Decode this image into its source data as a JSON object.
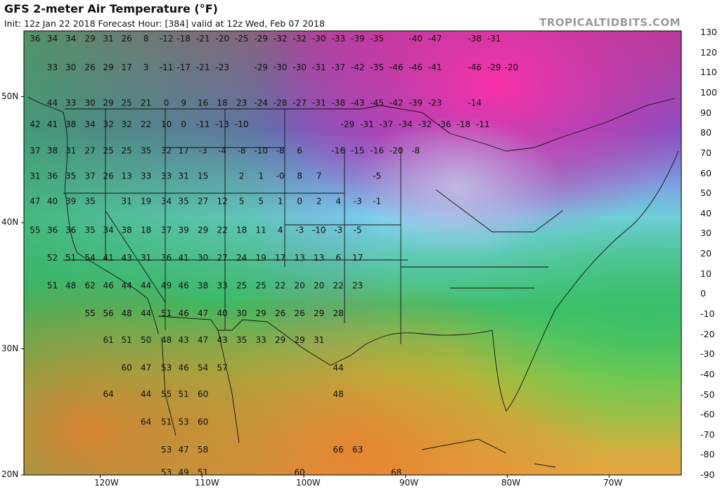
{
  "header": {
    "title": "GFS 2-meter Air Temperature (°F)",
    "subtitle": "Init: 12z Jan 22 2018   Forecast Hour: [384]   valid at 12z Wed, Feb 07 2018",
    "brand": "TROPICALTIDBITS.COM"
  },
  "axes": {
    "latitudes": [
      "50N",
      "40N",
      "30N",
      "20N"
    ],
    "longitudes": [
      "120W",
      "110W",
      "100W",
      "90W",
      "80W",
      "70W"
    ]
  },
  "colorbar": {
    "unit": "°F",
    "labels": [
      "130",
      "120",
      "110",
      "100",
      "90",
      "80",
      "70",
      "60",
      "50",
      "40",
      "30",
      "20",
      "10",
      "0",
      "-10",
      "-20",
      "-30",
      "-40",
      "-50",
      "-60",
      "-70",
      "-80",
      "-90"
    ],
    "colors": [
      "#7d2b6d",
      "#a54288",
      "#c96aaa",
      "#e8a5d3",
      "#8b1e1e",
      "#b43a2a",
      "#d66a2a",
      "#e89a3a",
      "#f0c845",
      "#9bcf3f",
      "#3fba6a",
      "#2fc5a5",
      "#2ec8e8",
      "#3a8de0",
      "#5b60d6",
      "#8a56c9",
      "#a84ab3",
      "#c83a8f",
      "#e03070",
      "#f0209a",
      "#f060c0",
      "#f7a8e0"
    ]
  },
  "temperatures": [
    {
      "t": "36",
      "lon": -126.4,
      "lat": 54.6
    },
    {
      "t": "34",
      "lon": -124.7,
      "lat": 54.6
    },
    {
      "t": "34",
      "lon": -122.9,
      "lat": 54.6
    },
    {
      "t": "29",
      "lon": -121.0,
      "lat": 54.6
    },
    {
      "t": "31",
      "lon": -119.2,
      "lat": 54.6
    },
    {
      "t": "26",
      "lon": -117.4,
      "lat": 54.6
    },
    {
      "t": "8",
      "lon": -115.5,
      "lat": 54.6
    },
    {
      "t": "-12",
      "lon": -113.5,
      "lat": 54.6
    },
    {
      "t": "-18",
      "lon": -111.8,
      "lat": 54.6
    },
    {
      "t": "-21",
      "lon": -109.9,
      "lat": 54.6
    },
    {
      "t": "-20",
      "lon": -108.0,
      "lat": 54.6
    },
    {
      "t": "-25",
      "lon": -106.1,
      "lat": 54.6
    },
    {
      "t": "-29",
      "lon": -104.2,
      "lat": 54.6
    },
    {
      "t": "-32",
      "lon": -102.3,
      "lat": 54.6
    },
    {
      "t": "-32",
      "lon": -100.4,
      "lat": 54.6
    },
    {
      "t": "-30",
      "lon": -98.5,
      "lat": 54.6
    },
    {
      "t": "-33",
      "lon": -96.6,
      "lat": 54.6
    },
    {
      "t": "-39",
      "lon": -94.7,
      "lat": 54.6
    },
    {
      "t": "-35",
      "lon": -92.8,
      "lat": 54.6
    },
    {
      "t": "-40",
      "lon": -89.0,
      "lat": 54.6
    },
    {
      "t": "-47",
      "lon": -87.1,
      "lat": 54.6
    },
    {
      "t": "-38",
      "lon": -83.2,
      "lat": 54.6
    },
    {
      "t": "-31",
      "lon": -81.3,
      "lat": 54.6
    },
    {
      "t": "33",
      "lon": -124.7,
      "lat": 52.3
    },
    {
      "t": "30",
      "lon": -122.9,
      "lat": 52.3
    },
    {
      "t": "26",
      "lon": -121.0,
      "lat": 52.3
    },
    {
      "t": "29",
      "lon": -119.2,
      "lat": 52.3
    },
    {
      "t": "17",
      "lon": -117.4,
      "lat": 52.3
    },
    {
      "t": "3",
      "lon": -115.5,
      "lat": 52.3
    },
    {
      "t": "-11",
      "lon": -113.5,
      "lat": 52.3
    },
    {
      "t": "-17",
      "lon": -111.8,
      "lat": 52.3
    },
    {
      "t": "-21",
      "lon": -109.9,
      "lat": 52.3
    },
    {
      "t": "-23",
      "lon": -108.0,
      "lat": 52.3
    },
    {
      "t": "-29",
      "lon": -104.2,
      "lat": 52.3
    },
    {
      "t": "-30",
      "lon": -102.3,
      "lat": 52.3
    },
    {
      "t": "-30",
      "lon": -100.4,
      "lat": 52.3
    },
    {
      "t": "-31",
      "lon": -98.5,
      "lat": 52.3
    },
    {
      "t": "-37",
      "lon": -96.6,
      "lat": 52.3
    },
    {
      "t": "-42",
      "lon": -94.7,
      "lat": 52.3
    },
    {
      "t": "-35",
      "lon": -92.8,
      "lat": 52.3
    },
    {
      "t": "-46",
      "lon": -90.9,
      "lat": 52.3
    },
    {
      "t": "-46",
      "lon": -89.0,
      "lat": 52.3
    },
    {
      "t": "-41",
      "lon": -87.1,
      "lat": 52.3
    },
    {
      "t": "-46",
      "lon": -83.2,
      "lat": 52.3
    },
    {
      "t": "-29",
      "lon": -81.3,
      "lat": 52.3
    },
    {
      "t": "-20",
      "lon": -79.6,
      "lat": 52.3
    },
    {
      "t": "44",
      "lon": -124.7,
      "lat": 49.5
    },
    {
      "t": "33",
      "lon": -122.9,
      "lat": 49.5
    },
    {
      "t": "30",
      "lon": -121.0,
      "lat": 49.5
    },
    {
      "t": "29",
      "lon": -119.2,
      "lat": 49.5
    },
    {
      "t": "25",
      "lon": -117.4,
      "lat": 49.5
    },
    {
      "t": "21",
      "lon": -115.5,
      "lat": 49.5
    },
    {
      "t": "0",
      "lon": -113.5,
      "lat": 49.5
    },
    {
      "t": "9",
      "lon": -111.8,
      "lat": 49.5
    },
    {
      "t": "16",
      "lon": -109.9,
      "lat": 49.5
    },
    {
      "t": "18",
      "lon": -108.0,
      "lat": 49.5
    },
    {
      "t": "23",
      "lon": -106.1,
      "lat": 49.5
    },
    {
      "t": "-24",
      "lon": -104.2,
      "lat": 49.5
    },
    {
      "t": "-28",
      "lon": -102.3,
      "lat": 49.5
    },
    {
      "t": "-27",
      "lon": -100.4,
      "lat": 49.5
    },
    {
      "t": "-31",
      "lon": -98.5,
      "lat": 49.5
    },
    {
      "t": "-38",
      "lon": -96.6,
      "lat": 49.5
    },
    {
      "t": "-43",
      "lon": -94.7,
      "lat": 49.5
    },
    {
      "t": "-45",
      "lon": -92.8,
      "lat": 49.5
    },
    {
      "t": "-42",
      "lon": -90.9,
      "lat": 49.5
    },
    {
      "t": "-39",
      "lon": -89.0,
      "lat": 49.5
    },
    {
      "t": "-23",
      "lon": -87.1,
      "lat": 49.5
    },
    {
      "t": "-14",
      "lon": -83.2,
      "lat": 49.5
    },
    {
      "t": "42",
      "lon": -126.4,
      "lat": 47.8
    },
    {
      "t": "41",
      "lon": -124.7,
      "lat": 47.8
    },
    {
      "t": "38",
      "lon": -122.9,
      "lat": 47.8
    },
    {
      "t": "34",
      "lon": -121.0,
      "lat": 47.8
    },
    {
      "t": "32",
      "lon": -119.2,
      "lat": 47.8
    },
    {
      "t": "32",
      "lon": -117.4,
      "lat": 47.8
    },
    {
      "t": "22",
      "lon": -115.5,
      "lat": 47.8
    },
    {
      "t": "10",
      "lon": -113.5,
      "lat": 47.8
    },
    {
      "t": "0",
      "lon": -111.8,
      "lat": 47.8
    },
    {
      "t": "-11",
      "lon": -109.9,
      "lat": 47.8
    },
    {
      "t": "-13",
      "lon": -108.0,
      "lat": 47.8
    },
    {
      "t": "-10",
      "lon": -106.1,
      "lat": 47.8
    },
    {
      "t": "-29",
      "lon": -95.7,
      "lat": 47.8
    },
    {
      "t": "-31",
      "lon": -93.8,
      "lat": 47.8
    },
    {
      "t": "-37",
      "lon": -91.9,
      "lat": 47.8
    },
    {
      "t": "-34",
      "lon": -90.0,
      "lat": 47.8
    },
    {
      "t": "-32",
      "lon": -88.1,
      "lat": 47.8
    },
    {
      "t": "-36",
      "lon": -86.2,
      "lat": 47.8
    },
    {
      "t": "-18",
      "lon": -84.3,
      "lat": 47.8
    },
    {
      "t": "-11",
      "lon": -82.4,
      "lat": 47.8
    },
    {
      "t": "37",
      "lon": -126.4,
      "lat": 45.7
    },
    {
      "t": "38",
      "lon": -124.7,
      "lat": 45.7
    },
    {
      "t": "31",
      "lon": -122.9,
      "lat": 45.7
    },
    {
      "t": "27",
      "lon": -121.0,
      "lat": 45.7
    },
    {
      "t": "25",
      "lon": -119.2,
      "lat": 45.7
    },
    {
      "t": "25",
      "lon": -117.4,
      "lat": 45.7
    },
    {
      "t": "35",
      "lon": -115.5,
      "lat": 45.7
    },
    {
      "t": "32",
      "lon": -113.5,
      "lat": 45.7
    },
    {
      "t": "17",
      "lon": -111.8,
      "lat": 45.7
    },
    {
      "t": "-3",
      "lon": -109.9,
      "lat": 45.7
    },
    {
      "t": "-4",
      "lon": -108.0,
      "lat": 45.7
    },
    {
      "t": "-8",
      "lon": -106.1,
      "lat": 45.7
    },
    {
      "t": "-10",
      "lon": -104.2,
      "lat": 45.7
    },
    {
      "t": "-8",
      "lon": -102.3,
      "lat": 45.7
    },
    {
      "t": "6",
      "lon": -100.4,
      "lat": 45.7
    },
    {
      "t": "-16",
      "lon": -96.6,
      "lat": 45.7
    },
    {
      "t": "-15",
      "lon": -94.7,
      "lat": 45.7
    },
    {
      "t": "-16",
      "lon": -92.8,
      "lat": 45.7
    },
    {
      "t": "-20",
      "lon": -90.9,
      "lat": 45.7
    },
    {
      "t": "-8",
      "lon": -89.0,
      "lat": 45.7
    },
    {
      "t": "31",
      "lon": -126.4,
      "lat": 43.7
    },
    {
      "t": "36",
      "lon": -124.7,
      "lat": 43.7
    },
    {
      "t": "35",
      "lon": -122.9,
      "lat": 43.7
    },
    {
      "t": "37",
      "lon": -121.0,
      "lat": 43.7
    },
    {
      "t": "26",
      "lon": -119.2,
      "lat": 43.7
    },
    {
      "t": "13",
      "lon": -117.4,
      "lat": 43.7
    },
    {
      "t": "33",
      "lon": -115.5,
      "lat": 43.7
    },
    {
      "t": "33",
      "lon": -113.5,
      "lat": 43.7
    },
    {
      "t": "31",
      "lon": -111.8,
      "lat": 43.7
    },
    {
      "t": "15",
      "lon": -109.9,
      "lat": 43.7
    },
    {
      "t": "2",
      "lon": -106.1,
      "lat": 43.7
    },
    {
      "t": "1",
      "lon": -104.2,
      "lat": 43.7
    },
    {
      "t": "-0",
      "lon": -102.3,
      "lat": 43.7
    },
    {
      "t": "8",
      "lon": -100.4,
      "lat": 43.7
    },
    {
      "t": "7",
      "lon": -98.5,
      "lat": 43.7
    },
    {
      "t": "-5",
      "lon": -92.8,
      "lat": 43.7
    },
    {
      "t": "47",
      "lon": -126.4,
      "lat": 41.7
    },
    {
      "t": "40",
      "lon": -124.7,
      "lat": 41.7
    },
    {
      "t": "39",
      "lon": -122.9,
      "lat": 41.7
    },
    {
      "t": "35",
      "lon": -121.0,
      "lat": 41.7
    },
    {
      "t": "31",
      "lon": -117.4,
      "lat": 41.7
    },
    {
      "t": "19",
      "lon": -115.5,
      "lat": 41.7
    },
    {
      "t": "34",
      "lon": -113.5,
      "lat": 41.7
    },
    {
      "t": "35",
      "lon": -111.8,
      "lat": 41.7
    },
    {
      "t": "27",
      "lon": -109.9,
      "lat": 41.7
    },
    {
      "t": "12",
      "lon": -108.0,
      "lat": 41.7
    },
    {
      "t": "5",
      "lon": -106.1,
      "lat": 41.7
    },
    {
      "t": "5",
      "lon": -104.2,
      "lat": 41.7
    },
    {
      "t": "1",
      "lon": -102.3,
      "lat": 41.7
    },
    {
      "t": "0",
      "lon": -100.4,
      "lat": 41.7
    },
    {
      "t": "2",
      "lon": -98.5,
      "lat": 41.7
    },
    {
      "t": "4",
      "lon": -96.6,
      "lat": 41.7
    },
    {
      "t": "-3",
      "lon": -94.7,
      "lat": 41.7
    },
    {
      "t": "-1",
      "lon": -92.8,
      "lat": 41.7
    },
    {
      "t": "55",
      "lon": -126.4,
      "lat": 39.4
    },
    {
      "t": "36",
      "lon": -124.7,
      "lat": 39.4
    },
    {
      "t": "36",
      "lon": -122.9,
      "lat": 39.4
    },
    {
      "t": "35",
      "lon": -121.0,
      "lat": 39.4
    },
    {
      "t": "34",
      "lon": -119.2,
      "lat": 39.4
    },
    {
      "t": "38",
      "lon": -117.4,
      "lat": 39.4
    },
    {
      "t": "18",
      "lon": -115.5,
      "lat": 39.4
    },
    {
      "t": "37",
      "lon": -113.5,
      "lat": 39.4
    },
    {
      "t": "39",
      "lon": -111.8,
      "lat": 39.4
    },
    {
      "t": "29",
      "lon": -109.9,
      "lat": 39.4
    },
    {
      "t": "22",
      "lon": -108.0,
      "lat": 39.4
    },
    {
      "t": "18",
      "lon": -106.1,
      "lat": 39.4
    },
    {
      "t": "11",
      "lon": -104.2,
      "lat": 39.4
    },
    {
      "t": "4",
      "lon": -102.3,
      "lat": 39.4
    },
    {
      "t": "-3",
      "lon": -100.4,
      "lat": 39.4
    },
    {
      "t": "-10",
      "lon": -98.5,
      "lat": 39.4
    },
    {
      "t": "-3",
      "lon": -96.6,
      "lat": 39.4
    },
    {
      "t": "-5",
      "lon": -94.7,
      "lat": 39.4
    },
    {
      "t": "52",
      "lon": -124.7,
      "lat": 37.2
    },
    {
      "t": "51",
      "lon": -122.9,
      "lat": 37.2
    },
    {
      "t": "54",
      "lon": -121.0,
      "lat": 37.2
    },
    {
      "t": "41",
      "lon": -119.2,
      "lat": 37.2
    },
    {
      "t": "43",
      "lon": -117.4,
      "lat": 37.2
    },
    {
      "t": "31",
      "lon": -115.5,
      "lat": 37.2
    },
    {
      "t": "36",
      "lon": -113.5,
      "lat": 37.2
    },
    {
      "t": "41",
      "lon": -111.8,
      "lat": 37.2
    },
    {
      "t": "30",
      "lon": -109.9,
      "lat": 37.2
    },
    {
      "t": "27",
      "lon": -108.0,
      "lat": 37.2
    },
    {
      "t": "24",
      "lon": -106.1,
      "lat": 37.2
    },
    {
      "t": "19",
      "lon": -104.2,
      "lat": 37.2
    },
    {
      "t": "17",
      "lon": -102.3,
      "lat": 37.2
    },
    {
      "t": "13",
      "lon": -100.4,
      "lat": 37.2
    },
    {
      "t": "13",
      "lon": -98.5,
      "lat": 37.2
    },
    {
      "t": "6",
      "lon": -96.6,
      "lat": 37.2
    },
    {
      "t": "17",
      "lon": -94.7,
      "lat": 37.2
    },
    {
      "t": "51",
      "lon": -124.7,
      "lat": 35.0
    },
    {
      "t": "48",
      "lon": -122.9,
      "lat": 35.0
    },
    {
      "t": "62",
      "lon": -121.0,
      "lat": 35.0
    },
    {
      "t": "46",
      "lon": -119.2,
      "lat": 35.0
    },
    {
      "t": "44",
      "lon": -117.4,
      "lat": 35.0
    },
    {
      "t": "44",
      "lon": -115.5,
      "lat": 35.0
    },
    {
      "t": "49",
      "lon": -113.5,
      "lat": 35.0
    },
    {
      "t": "46",
      "lon": -111.8,
      "lat": 35.0
    },
    {
      "t": "38",
      "lon": -109.9,
      "lat": 35.0
    },
    {
      "t": "33",
      "lon": -108.0,
      "lat": 35.0
    },
    {
      "t": "25",
      "lon": -106.1,
      "lat": 35.0
    },
    {
      "t": "25",
      "lon": -104.2,
      "lat": 35.0
    },
    {
      "t": "22",
      "lon": -102.3,
      "lat": 35.0
    },
    {
      "t": "20",
      "lon": -100.4,
      "lat": 35.0
    },
    {
      "t": "20",
      "lon": -98.5,
      "lat": 35.0
    },
    {
      "t": "22",
      "lon": -96.6,
      "lat": 35.0
    },
    {
      "t": "23",
      "lon": -94.7,
      "lat": 35.0
    },
    {
      "t": "55",
      "lon": -121.0,
      "lat": 32.8
    },
    {
      "t": "56",
      "lon": -119.2,
      "lat": 32.8
    },
    {
      "t": "48",
      "lon": -117.4,
      "lat": 32.8
    },
    {
      "t": "44",
      "lon": -115.5,
      "lat": 32.8
    },
    {
      "t": "51",
      "lon": -113.5,
      "lat": 32.8
    },
    {
      "t": "46",
      "lon": -111.8,
      "lat": 32.8
    },
    {
      "t": "47",
      "lon": -109.9,
      "lat": 32.8
    },
    {
      "t": "40",
      "lon": -108.0,
      "lat": 32.8
    },
    {
      "t": "30",
      "lon": -106.1,
      "lat": 32.8
    },
    {
      "t": "29",
      "lon": -104.2,
      "lat": 32.8
    },
    {
      "t": "26",
      "lon": -102.3,
      "lat": 32.8
    },
    {
      "t": "26",
      "lon": -100.4,
      "lat": 32.8
    },
    {
      "t": "29",
      "lon": -98.5,
      "lat": 32.8
    },
    {
      "t": "28",
      "lon": -96.6,
      "lat": 32.8
    },
    {
      "t": "61",
      "lon": -119.2,
      "lat": 30.7
    },
    {
      "t": "51",
      "lon": -117.4,
      "lat": 30.7
    },
    {
      "t": "50",
      "lon": -115.5,
      "lat": 30.7
    },
    {
      "t": "48",
      "lon": -113.5,
      "lat": 30.7
    },
    {
      "t": "43",
      "lon": -111.8,
      "lat": 30.7
    },
    {
      "t": "47",
      "lon": -109.9,
      "lat": 30.7
    },
    {
      "t": "43",
      "lon": -108.0,
      "lat": 30.7
    },
    {
      "t": "35",
      "lon": -106.1,
      "lat": 30.7
    },
    {
      "t": "33",
      "lon": -104.2,
      "lat": 30.7
    },
    {
      "t": "29",
      "lon": -102.3,
      "lat": 30.7
    },
    {
      "t": "29",
      "lon": -100.4,
      "lat": 30.7
    },
    {
      "t": "31",
      "lon": -98.5,
      "lat": 30.7
    },
    {
      "t": "60",
      "lon": -117.4,
      "lat": 28.5
    },
    {
      "t": "47",
      "lon": -115.5,
      "lat": 28.5
    },
    {
      "t": "53",
      "lon": -113.5,
      "lat": 28.5
    },
    {
      "t": "46",
      "lon": -111.8,
      "lat": 28.5
    },
    {
      "t": "54",
      "lon": -109.9,
      "lat": 28.5
    },
    {
      "t": "57",
      "lon": -108.0,
      "lat": 28.5
    },
    {
      "t": "44",
      "lon": -96.6,
      "lat": 28.5
    },
    {
      "t": "64",
      "lon": -119.2,
      "lat": 26.4
    },
    {
      "t": "44",
      "lon": -115.5,
      "lat": 26.4
    },
    {
      "t": "55",
      "lon": -113.5,
      "lat": 26.4
    },
    {
      "t": "51",
      "lon": -111.8,
      "lat": 26.4
    },
    {
      "t": "60",
      "lon": -109.9,
      "lat": 26.4
    },
    {
      "t": "48",
      "lon": -96.6,
      "lat": 26.4
    },
    {
      "t": "64",
      "lon": -115.5,
      "lat": 24.2
    },
    {
      "t": "51",
      "lon": -113.5,
      "lat": 24.2
    },
    {
      "t": "53",
      "lon": -111.8,
      "lat": 24.2
    },
    {
      "t": "60",
      "lon": -109.9,
      "lat": 24.2
    },
    {
      "t": "53",
      "lon": -113.5,
      "lat": 22.0
    },
    {
      "t": "47",
      "lon": -111.8,
      "lat": 22.0
    },
    {
      "t": "58",
      "lon": -109.9,
      "lat": 22.0
    },
    {
      "t": "66",
      "lon": -96.6,
      "lat": 22.0
    },
    {
      "t": "63",
      "lon": -94.7,
      "lat": 22.0
    },
    {
      "t": "53",
      "lon": -113.5,
      "lat": 20.2
    },
    {
      "t": "49",
      "lon": -111.8,
      "lat": 20.2
    },
    {
      "t": "51",
      "lon": -109.9,
      "lat": 20.2
    },
    {
      "t": "60",
      "lon": -100.4,
      "lat": 20.2
    },
    {
      "t": "68",
      "lon": -90.9,
      "lat": 20.2
    }
  ]
}
